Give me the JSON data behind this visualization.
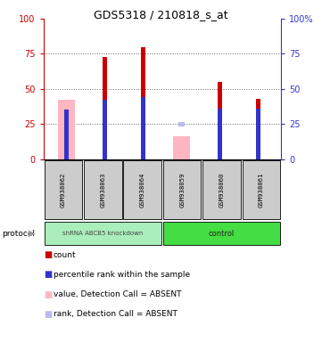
{
  "title": "GDS5318 / 210818_s_at",
  "samples": [
    "GSM938062",
    "GSM938063",
    "GSM938064",
    "GSM938059",
    "GSM938060",
    "GSM938061"
  ],
  "red_values": [
    null,
    73,
    80,
    null,
    55,
    43
  ],
  "pink_values": [
    42,
    null,
    null,
    16,
    null,
    null
  ],
  "blue_values": [
    35,
    42,
    44,
    null,
    36,
    36
  ],
  "lblue_values": [
    null,
    null,
    null,
    25,
    null,
    null
  ],
  "ylim": [
    0,
    100
  ],
  "red_color": "#CC0000",
  "pink_color": "#FFB6C1",
  "blue_color": "#3333CC",
  "lblue_color": "#BBBBEE",
  "left_axis_color": "#CC0000",
  "right_axis_color": "#3333CC",
  "grid_color": "#666666",
  "group1_color": "#AAEEBB",
  "group2_color": "#44DD44",
  "label_bg": "#CCCCCC",
  "title_fontsize": 9,
  "tick_fontsize": 7,
  "legend_fontsize": 6.5
}
